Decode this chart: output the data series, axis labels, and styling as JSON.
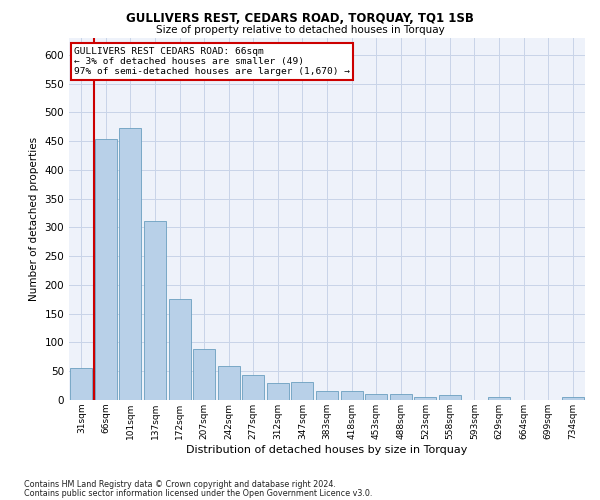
{
  "title": "GULLIVERS REST, CEDARS ROAD, TORQUAY, TQ1 1SB",
  "subtitle": "Size of property relative to detached houses in Torquay",
  "xlabel": "Distribution of detached houses by size in Torquay",
  "ylabel": "Number of detached properties",
  "categories": [
    "31sqm",
    "66sqm",
    "101sqm",
    "137sqm",
    "172sqm",
    "207sqm",
    "242sqm",
    "277sqm",
    "312sqm",
    "347sqm",
    "383sqm",
    "418sqm",
    "453sqm",
    "488sqm",
    "523sqm",
    "558sqm",
    "593sqm",
    "629sqm",
    "664sqm",
    "699sqm",
    "734sqm"
  ],
  "values": [
    55,
    453,
    472,
    311,
    176,
    88,
    59,
    43,
    30,
    32,
    15,
    15,
    10,
    10,
    6,
    9,
    0,
    5,
    0,
    0,
    5
  ],
  "bar_color": "#b8d0e8",
  "bar_edge_color": "#6a9fc0",
  "highlight_index": 1,
  "highlight_color": "#cc0000",
  "ylim": [
    0,
    630
  ],
  "yticks": [
    0,
    50,
    100,
    150,
    200,
    250,
    300,
    350,
    400,
    450,
    500,
    550,
    600
  ],
  "annotation_title": "GULLIVERS REST CEDARS ROAD: 66sqm",
  "annotation_line1": "← 3% of detached houses are smaller (49)",
  "annotation_line2": "97% of semi-detached houses are larger (1,670) →",
  "annotation_box_color": "#ffffff",
  "annotation_border_color": "#cc0000",
  "footer1": "Contains HM Land Registry data © Crown copyright and database right 2024.",
  "footer2": "Contains public sector information licensed under the Open Government Licence v3.0.",
  "bg_color": "#eef2fa",
  "fig_bg_color": "#ffffff",
  "grid_color": "#c8d4e8"
}
